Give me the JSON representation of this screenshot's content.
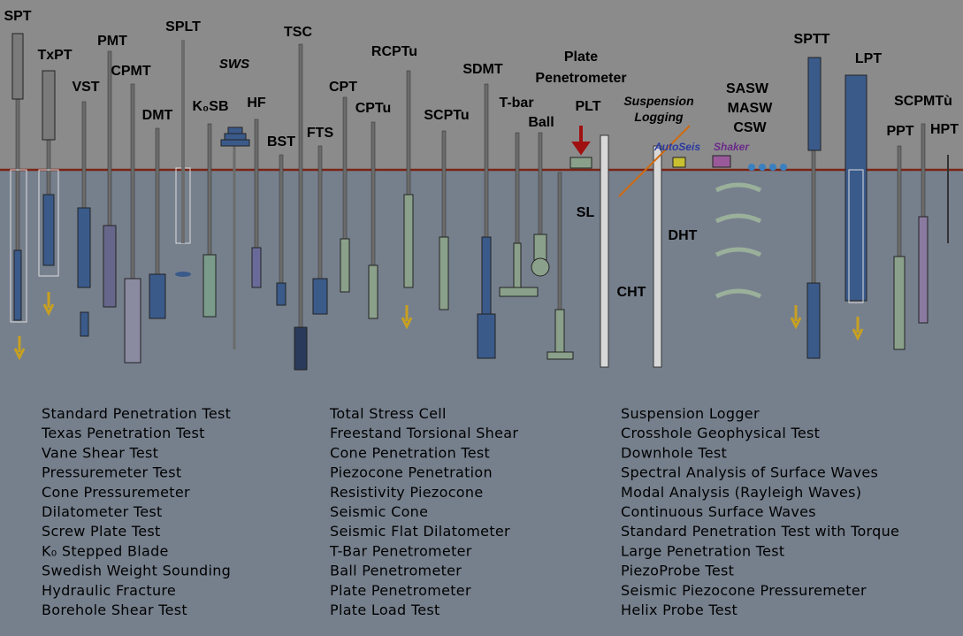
{
  "tool_labels": [
    "SPT",
    "TxPT",
    "VST",
    "PMT",
    "CPMT",
    "DMT",
    "SPLT",
    "K₀SB",
    "SWS",
    "HF",
    "BST",
    "TSC",
    "FTS",
    "CPT",
    "CPTu",
    "RCPTu",
    "SCPTu",
    "SDMT",
    "T-bar",
    "Ball",
    "Plate",
    "Penetrometer",
    "PLT",
    "Suspension",
    "Logging",
    "SASW",
    "MASW",
    "CSW",
    "SPTT",
    "LPT",
    "SCPMTù",
    "PPT",
    "HPT"
  ],
  "annotations": [
    "SL",
    "DHT",
    "CHT",
    "AutoSeis",
    "Shaker"
  ],
  "legend": {
    "columns": [
      [
        "Standard Penetration Test",
        "Texas Penetration Test",
        "Vane Shear Test",
        "Pressuremeter Test",
        "Cone Pressuremeter",
        "Dilatometer Test",
        "Screw Plate Test",
        "K₀ Stepped Blade",
        "Swedish Weight Sounding",
        "Hydraulic Fracture",
        "Borehole Shear Test"
      ],
      [
        "Total Stress Cell",
        "Freestand Torsional Shear",
        "Cone Penetration Test",
        "Piezocone Penetration",
        "Resistivity Piezocone",
        "Seismic Cone",
        "Seismic Flat Dilatometer",
        "T-Bar Penetrometer",
        "Ball Penetrometer",
        "Plate Penetrometer",
        "Plate Load Test"
      ],
      [
        "Suspension Logger",
        "Crosshole Geophysical Test",
        "Downhole Test",
        "Spectral Analysis of Surface Waves",
        "Modal Analysis (Rayleigh Waves)",
        "Continuous Surface Waves",
        "Standard Penetration Test with Torque",
        "Large Penetration Test",
        "PiezoProbe Test",
        "Seismic Piezocone Pressuremeter",
        "Helix Probe Test"
      ]
    ]
  }
}
